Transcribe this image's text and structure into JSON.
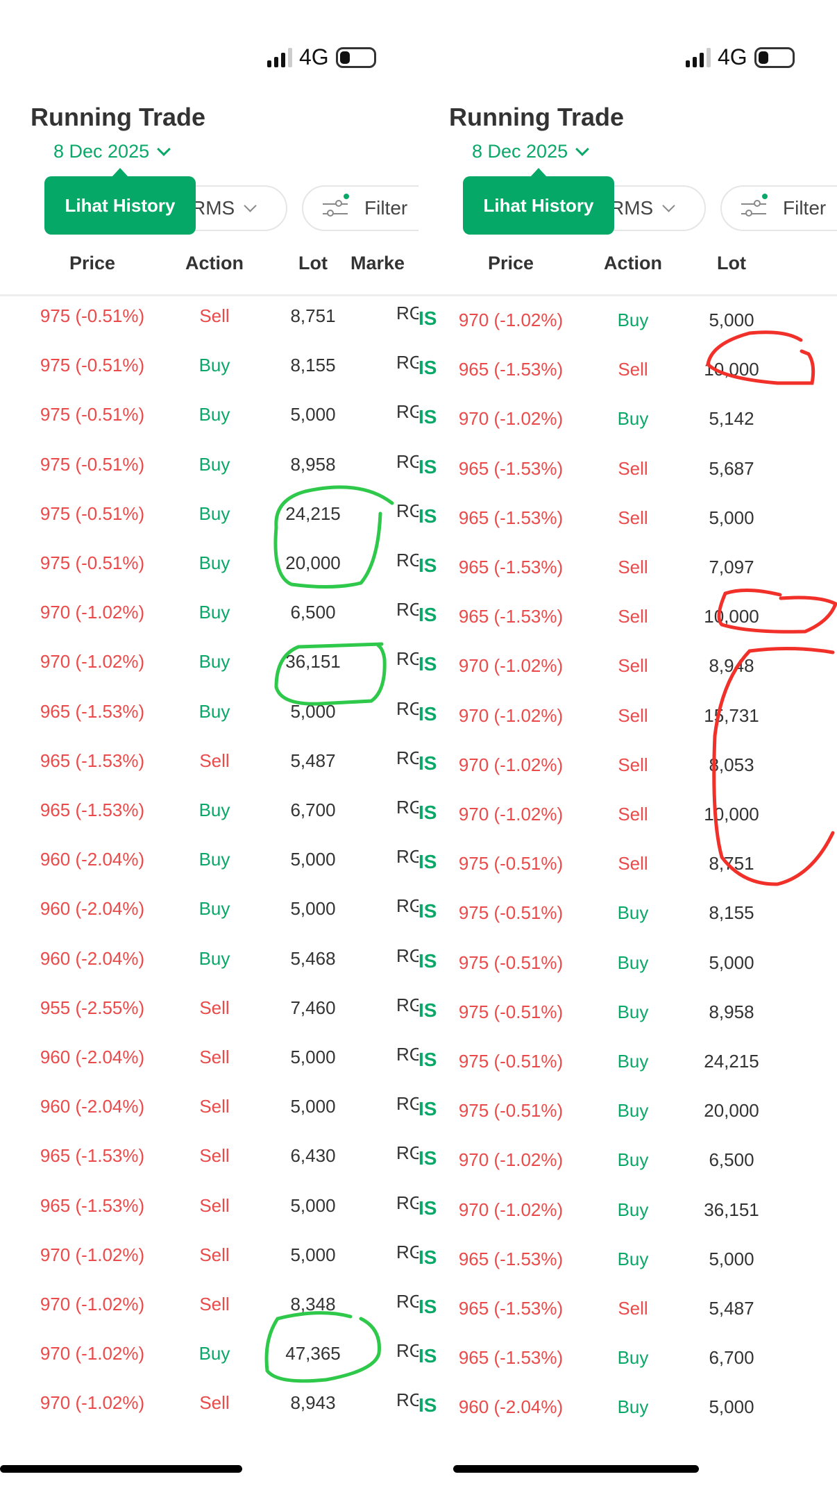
{
  "panels": [
    {
      "status": {
        "network": "4G"
      },
      "title": "Running Trade",
      "date": "8 Dec 2025",
      "tooltip": "Lihat History",
      "broker_filter": "RMS",
      "filter_label": "Filter",
      "headers": [
        "Price",
        "Action",
        "Lot",
        "Marke"
      ],
      "market_value": "RG",
      "rows": [
        [
          "975 (-0.51%)",
          "Sell",
          "8,751"
        ],
        [
          "975 (-0.51%)",
          "Buy",
          "8,155"
        ],
        [
          "975 (-0.51%)",
          "Buy",
          "5,000"
        ],
        [
          "975 (-0.51%)",
          "Buy",
          "8,958"
        ],
        [
          "975 (-0.51%)",
          "Buy",
          "24,215"
        ],
        [
          "975 (-0.51%)",
          "Buy",
          "20,000"
        ],
        [
          "970 (-1.02%)",
          "Buy",
          "6,500"
        ],
        [
          "970 (-1.02%)",
          "Buy",
          "36,151"
        ],
        [
          "965 (-1.53%)",
          "Buy",
          "5,000"
        ],
        [
          "965 (-1.53%)",
          "Sell",
          "5,487"
        ],
        [
          "965 (-1.53%)",
          "Buy",
          "6,700"
        ],
        [
          "960 (-2.04%)",
          "Buy",
          "5,000"
        ],
        [
          "960 (-2.04%)",
          "Buy",
          "5,000"
        ],
        [
          "960 (-2.04%)",
          "Buy",
          "5,468"
        ],
        [
          "955 (-2.55%)",
          "Sell",
          "7,460"
        ],
        [
          "960 (-2.04%)",
          "Sell",
          "5,000"
        ],
        [
          "960 (-2.04%)",
          "Sell",
          "5,000"
        ],
        [
          "965 (-1.53%)",
          "Sell",
          "6,430"
        ],
        [
          "965 (-1.53%)",
          "Sell",
          "5,000"
        ],
        [
          "970 (-1.02%)",
          "Sell",
          "5,000"
        ],
        [
          "970 (-1.02%)",
          "Sell",
          "8,348"
        ],
        [
          "970 (-1.02%)",
          "Buy",
          "47,365"
        ],
        [
          "970 (-1.02%)",
          "Sell",
          "8,943"
        ]
      ]
    },
    {
      "status": {
        "network": "4G"
      },
      "title": "Running Trade",
      "date": "8 Dec 2025",
      "tooltip": "Lihat History",
      "broker_filter": "RMS",
      "filter_label": "Filter",
      "headers": [
        "Price",
        "Action",
        "Lot",
        ""
      ],
      "edge_code": "IS",
      "rows": [
        [
          "970 (-1.02%)",
          "Buy",
          "5,000"
        ],
        [
          "965 (-1.53%)",
          "Sell",
          "10,000"
        ],
        [
          "970 (-1.02%)",
          "Buy",
          "5,142"
        ],
        [
          "965 (-1.53%)",
          "Sell",
          "5,687"
        ],
        [
          "965 (-1.53%)",
          "Sell",
          "5,000"
        ],
        [
          "965 (-1.53%)",
          "Sell",
          "7,097"
        ],
        [
          "965 (-1.53%)",
          "Sell",
          "10,000"
        ],
        [
          "970 (-1.02%)",
          "Sell",
          "8,948"
        ],
        [
          "970 (-1.02%)",
          "Sell",
          "15,731"
        ],
        [
          "970 (-1.02%)",
          "Sell",
          "8,053"
        ],
        [
          "970 (-1.02%)",
          "Sell",
          "10,000"
        ],
        [
          "975 (-0.51%)",
          "Sell",
          "8,751"
        ],
        [
          "975 (-0.51%)",
          "Buy",
          "8,155"
        ],
        [
          "975 (-0.51%)",
          "Buy",
          "5,000"
        ],
        [
          "975 (-0.51%)",
          "Buy",
          "8,958"
        ],
        [
          "975 (-0.51%)",
          "Buy",
          "24,215"
        ],
        [
          "975 (-0.51%)",
          "Buy",
          "20,000"
        ],
        [
          "970 (-1.02%)",
          "Buy",
          "6,500"
        ],
        [
          "970 (-1.02%)",
          "Buy",
          "36,151"
        ],
        [
          "965 (-1.53%)",
          "Buy",
          "5,000"
        ],
        [
          "965 (-1.53%)",
          "Sell",
          "5,487"
        ],
        [
          "965 (-1.53%)",
          "Buy",
          "6,700"
        ],
        [
          "960 (-2.04%)",
          "Buy",
          "5,000"
        ]
      ]
    }
  ],
  "colors": {
    "up": "#0aa868",
    "down": "#ea4a4a",
    "annotation_green": "#2ec94a",
    "annotation_red": "#f2302a"
  }
}
